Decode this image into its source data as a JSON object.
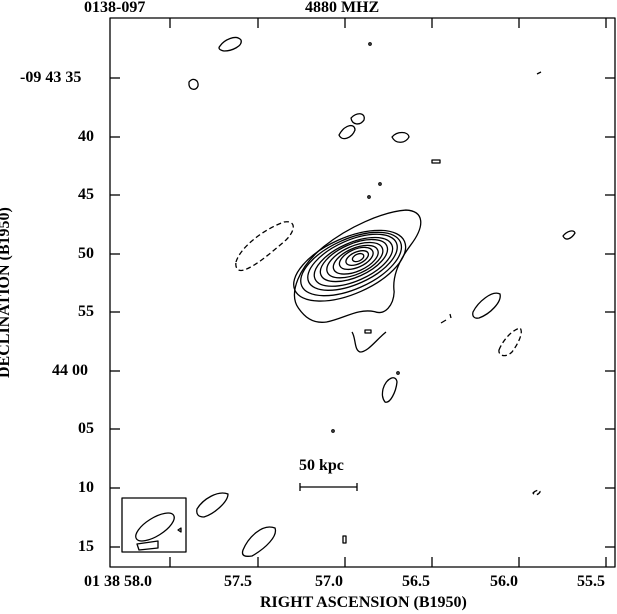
{
  "header": {
    "source": "0138-097",
    "frequency": "4880 MHZ"
  },
  "axes": {
    "x_label": "RIGHT ASCENSION (B1950)",
    "y_label": "DECLINATION (B1950)",
    "x_ticks": [
      "01 38 58.0",
      "57.5",
      "57.0",
      "56.5",
      "56.0",
      "55.5"
    ],
    "y_ticks": [
      "-09 43 35",
      "40",
      "45",
      "50",
      "55",
      "44 00",
      "05",
      "10",
      "15"
    ]
  },
  "scale_bar": {
    "label": "50 kpc"
  },
  "contour_map": {
    "solid_contour_levels": 12,
    "negative_contours": "dashed",
    "beam_inset": true
  }
}
